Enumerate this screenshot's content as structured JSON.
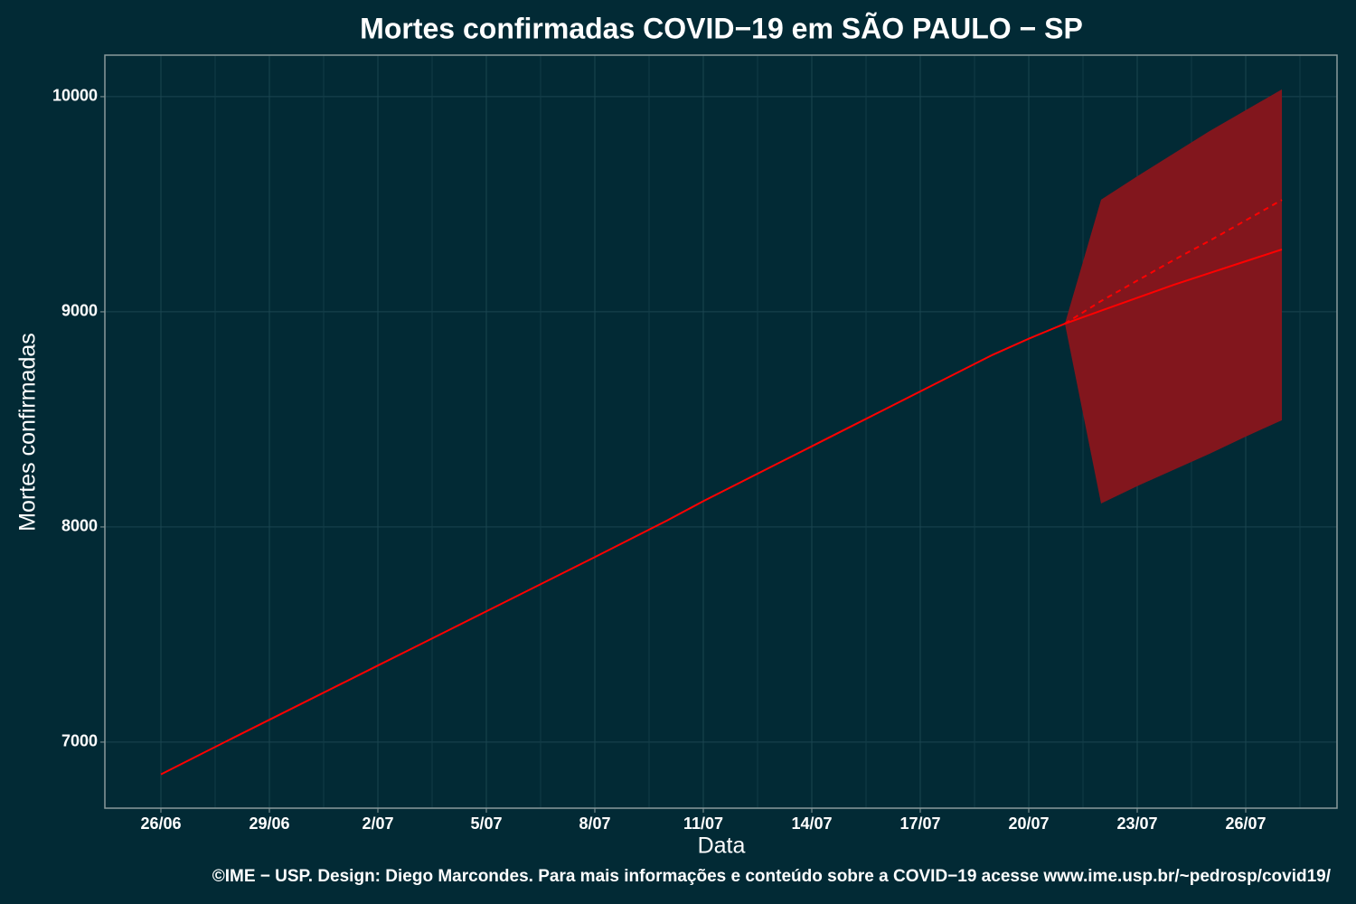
{
  "chart_data": {
    "type": "line",
    "title": "Mortes confirmadas COVID−19 em SÃO PAULO − SP",
    "x_label": "Data",
    "y_label": "Mortes confirmadas",
    "caption": "©IME − USP. Design: Diego Marcondes. Para mais informações e conteúdo sobre a COVID−19 acesse www.ime.usp.br/~pedrosp/covid19/",
    "categories": [
      "26/06",
      "27/06",
      "28/06",
      "29/06",
      "30/06",
      "1/07",
      "2/07",
      "3/07",
      "4/07",
      "5/07",
      "6/07",
      "7/07",
      "8/07",
      "9/07",
      "10/07",
      "11/07",
      "12/07",
      "13/07",
      "14/07",
      "15/07",
      "16/07",
      "17/07",
      "18/07",
      "19/07",
      "20/07",
      "21/07",
      "22/07",
      "23/07",
      "24/07",
      "25/07",
      "26/07",
      "27/07"
    ],
    "xticks": [
      "26/06",
      "29/06",
      "2/07",
      "5/07",
      "8/07",
      "11/07",
      "14/07",
      "17/07",
      "20/07",
      "23/07",
      "26/07"
    ],
    "series": [
      {
        "color": "#ff0000",
        "dashed": false,
        "values": [
          6850,
          6935,
          7020,
          7104,
          7188,
          7272,
          7356,
          7440,
          7524,
          7608,
          7692,
          7776,
          7860,
          7945,
          8030,
          8120,
          8205,
          8290,
          8375,
          8460,
          8545,
          8630,
          8715,
          8800,
          8875,
          8945,
          9005,
          9065,
          9125,
          9180,
          9235,
          9290
        ]
      },
      {
        "color": "#ff0000",
        "dashed": true,
        "values": [
          null,
          null,
          null,
          null,
          null,
          null,
          null,
          null,
          null,
          null,
          null,
          null,
          null,
          null,
          null,
          null,
          null,
          null,
          null,
          null,
          null,
          null,
          null,
          null,
          null,
          8945,
          9050,
          9145,
          9240,
          9330,
          9425,
          9520
        ]
      }
    ],
    "band": {
      "color": "#82161d",
      "lower": [
        null,
        null,
        null,
        null,
        null,
        null,
        null,
        null,
        null,
        null,
        null,
        null,
        null,
        null,
        null,
        null,
        null,
        null,
        null,
        null,
        null,
        null,
        null,
        null,
        null,
        8945,
        8109,
        8190,
        8265,
        8340,
        8420,
        8496
      ],
      "upper": [
        null,
        null,
        null,
        null,
        null,
        null,
        null,
        null,
        null,
        null,
        null,
        null,
        null,
        null,
        null,
        null,
        null,
        null,
        null,
        null,
        null,
        null,
        null,
        null,
        null,
        8945,
        9521,
        9630,
        9735,
        9840,
        9937,
        10034
      ]
    },
    "ylim": [
      6693,
      10193
    ],
    "yticks": [
      7000,
      8000,
      9000,
      10000
    ],
    "grid": true
  }
}
